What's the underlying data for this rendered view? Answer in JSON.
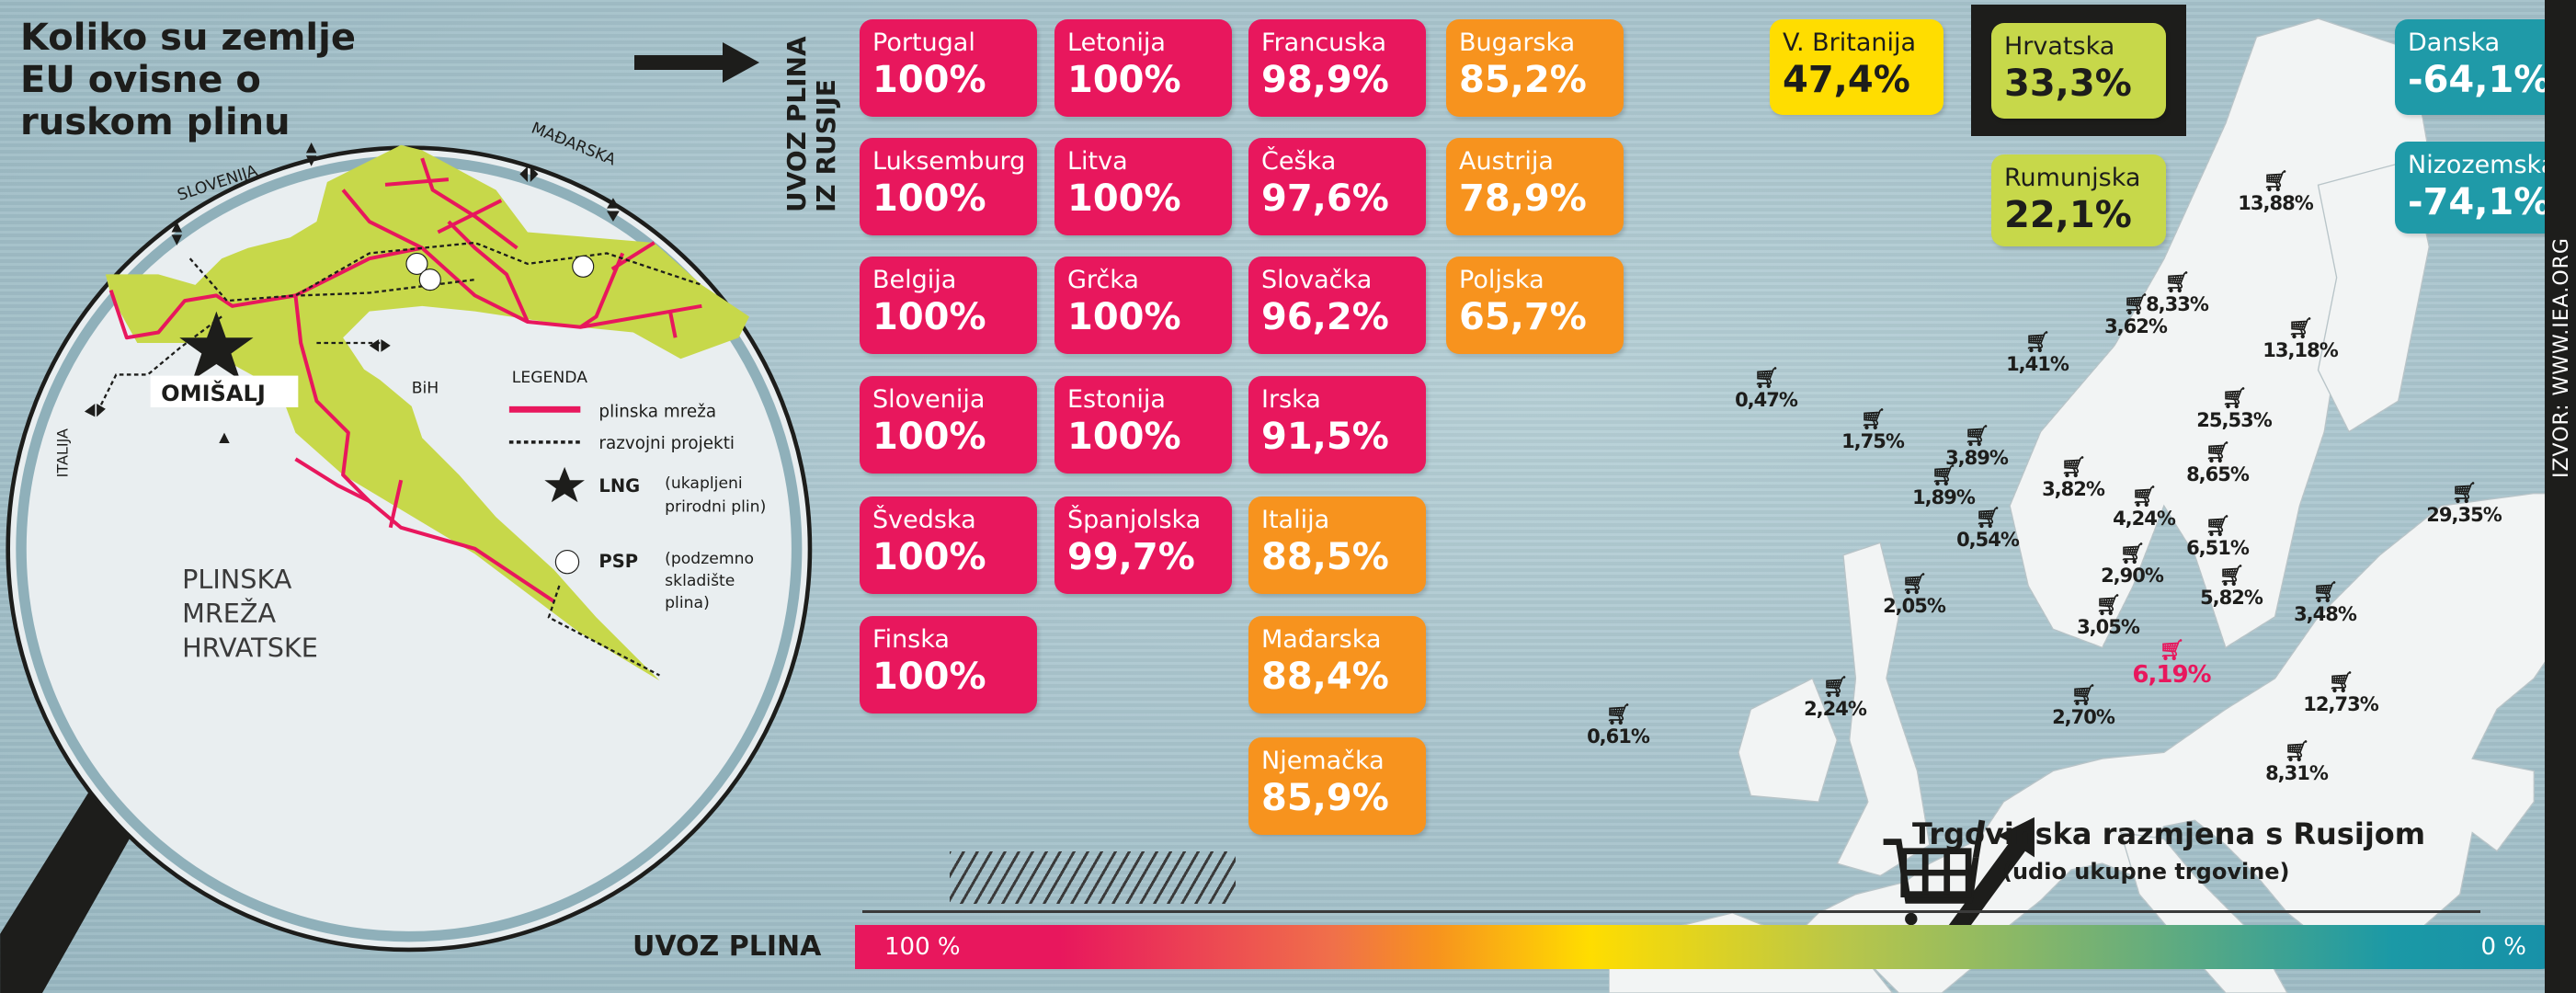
{
  "title": "Koliko su zemlje EU ovisne o ruskom plinu",
  "vertical_label": [
    "UVOZ PLINA",
    "IZ RUSIJE"
  ],
  "croatia_map": {
    "neighbors": {
      "slovenia": "SLOVENIJA",
      "hungary": "MAĐARSKA",
      "italy": "ITALIJA",
      "bih": "BiH"
    },
    "lng_site": "OMIŠALJ",
    "map_title": [
      "PLINSKA",
      "MREŽA",
      "HRVATSKE"
    ],
    "legend": {
      "title": "LEGENDA",
      "pipeline": "plinska mreža",
      "projects": "razvojni projekti",
      "lng_label": "LNG",
      "lng_desc": [
        "(ukapljeni",
        "prirodni plin)"
      ],
      "psp_label": "PSP",
      "psp_desc": [
        "(podzemno",
        "skladište",
        "plina)"
      ]
    }
  },
  "colors": {
    "red": "#e8175d",
    "orange": "#f7931e",
    "yellow": "#ffdd00",
    "lime": "#c7d84a",
    "teal": "#1f9aa8"
  },
  "gas_imports": [
    [
      {
        "name": "Portugal",
        "value": "100%",
        "color": "red"
      },
      {
        "name": "Luksemburg",
        "value": "100%",
        "color": "red"
      },
      {
        "name": "Belgija",
        "value": "100%",
        "color": "red"
      },
      {
        "name": "Slovenija",
        "value": "100%",
        "color": "red"
      },
      {
        "name": "Švedska",
        "value": "100%",
        "color": "red"
      },
      {
        "name": "Finska",
        "value": "100%",
        "color": "red"
      }
    ],
    [
      {
        "name": "Letonija",
        "value": "100%",
        "color": "red"
      },
      {
        "name": "Litva",
        "value": "100%",
        "color": "red"
      },
      {
        "name": "Grčka",
        "value": "100%",
        "color": "red"
      },
      {
        "name": "Estonija",
        "value": "100%",
        "color": "red"
      },
      {
        "name": "Španjolska",
        "value": "99,7%",
        "color": "red"
      }
    ],
    [
      {
        "name": "Francuska",
        "value": "98,9%",
        "color": "red"
      },
      {
        "name": "Češka",
        "value": "97,6%",
        "color": "red"
      },
      {
        "name": "Slovačka",
        "value": "96,2%",
        "color": "red"
      },
      {
        "name": "Irska",
        "value": "91,5%",
        "color": "red"
      },
      {
        "name": "Italija",
        "value": "88,5%",
        "color": "orange"
      },
      {
        "name": "Mađarska",
        "value": "88,4%",
        "color": "orange"
      },
      {
        "name": "Njemačka",
        "value": "85,9%",
        "color": "orange"
      }
    ],
    [
      {
        "name": "Bugarska",
        "value": "85,2%",
        "color": "orange"
      },
      {
        "name": "Austrija",
        "value": "78,9%",
        "color": "orange"
      },
      {
        "name": "Poljska",
        "value": "65,7%",
        "color": "orange"
      }
    ]
  ],
  "other_countries": [
    {
      "name": "V. Britanija",
      "value": "47,4%",
      "color": "yellow"
    },
    {
      "name": "Hrvatska",
      "value": "33,3%",
      "color": "lime",
      "highlighted": true
    },
    {
      "name": "Rumunjska",
      "value": "22,1%",
      "color": "lime"
    },
    {
      "name": "Danska",
      "value": "-64,1%",
      "color": "teal"
    },
    {
      "name": "Nizozemska",
      "value": "-74,1%",
      "color": "teal"
    }
  ],
  "trade_shares": [
    "13,88%",
    "8,33%",
    "13,18%",
    "3,62%",
    "1,41%",
    "0,47%",
    "1,75%",
    "25,53%",
    "3,89%",
    "1,89%",
    "3,82%",
    "8,65%",
    "4,24%",
    "29,35%",
    "0,54%",
    "6,51%",
    "2,90%",
    "2,05%",
    "5,82%",
    "3,48%",
    "3,05%",
    "6,19%",
    "2,24%",
    "2,70%",
    "12,73%",
    "0,61%",
    "8,31%"
  ],
  "trade_title": "Trgovinska razmjena s Rusijom",
  "trade_subtitle": "(udio ukupne trgovine)",
  "scale": {
    "label": "UVOZ PLINA",
    "min_label": "0 %",
    "max_label": "100 %"
  },
  "source": "IZVOR: WWW.IEA.ORG"
}
